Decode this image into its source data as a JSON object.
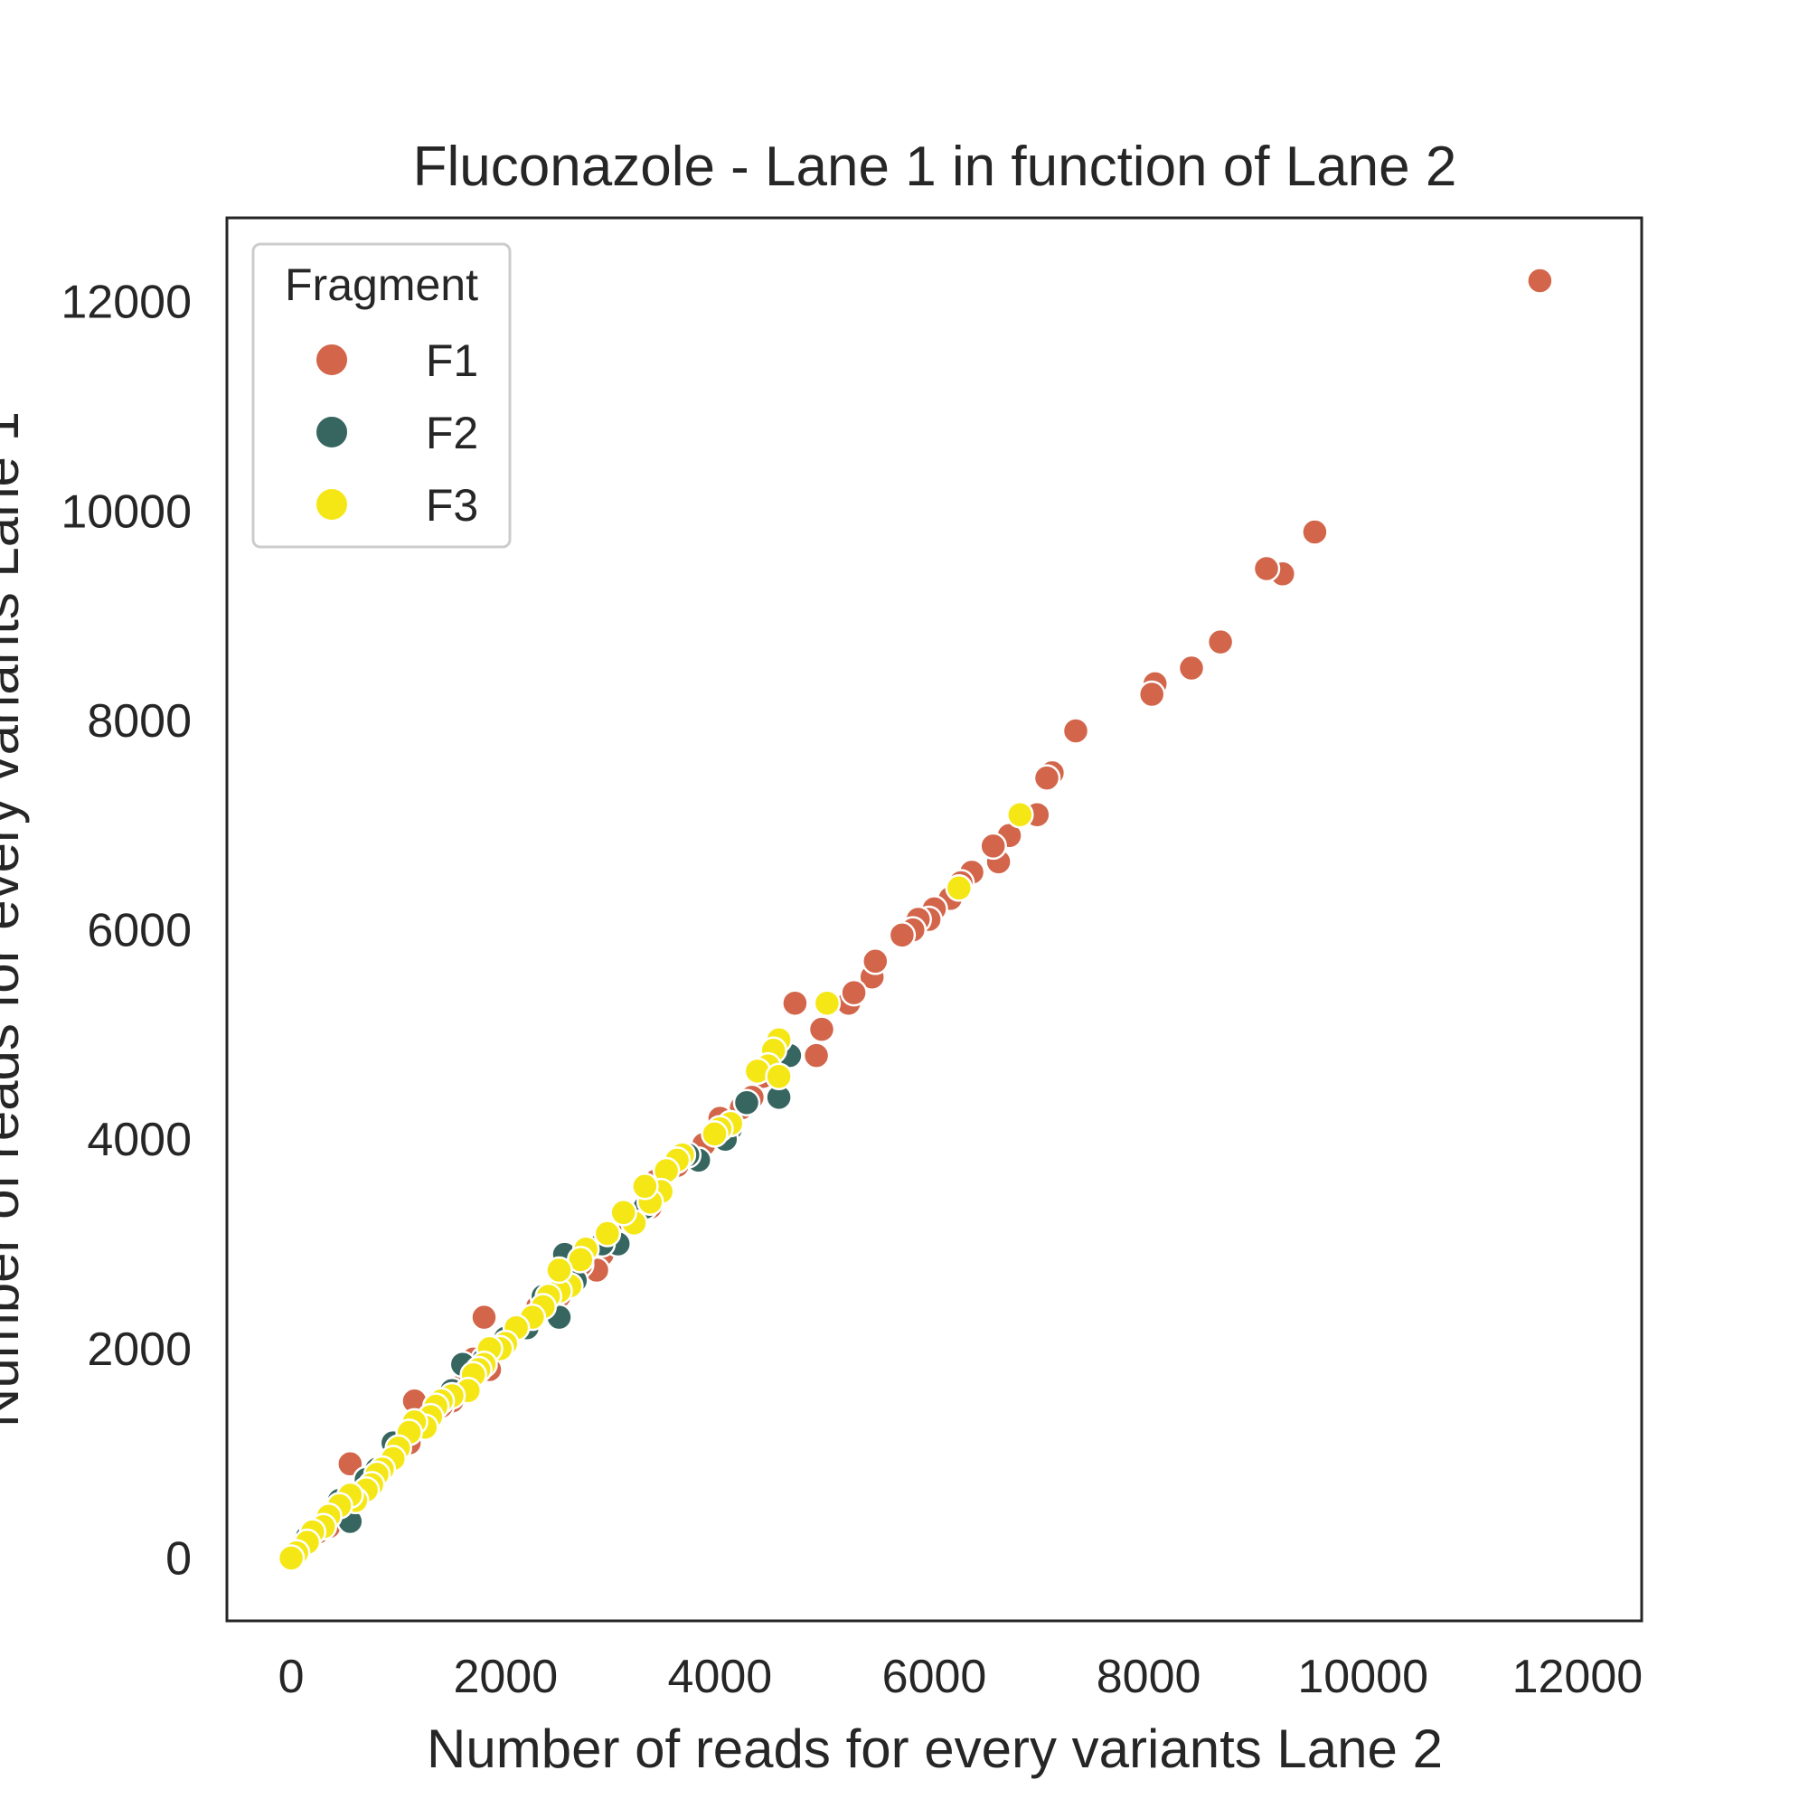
{
  "chart_data": {
    "type": "scatter",
    "title": "Fluconazole - Lane 1 in function of Lane 2",
    "xlabel": "Number of reads for every variants Lane 2",
    "ylabel": "Number of reads for every variants Lane 1",
    "xlim": [
      -600,
      12600
    ],
    "ylim": [
      -600,
      12800
    ],
    "xticks": [
      0,
      2000,
      4000,
      6000,
      8000,
      10000,
      12000
    ],
    "yticks": [
      0,
      2000,
      4000,
      6000,
      8000,
      10000,
      12000
    ],
    "grid": false,
    "legend": {
      "title": "Fragment",
      "placement": "top-left"
    },
    "series": [
      {
        "name": "F1",
        "color": "#d2654a",
        "points": [
          [
            11650,
            12200
          ],
          [
            9550,
            9800
          ],
          [
            9250,
            9400
          ],
          [
            9100,
            9450
          ],
          [
            8670,
            8750
          ],
          [
            8400,
            8500
          ],
          [
            8060,
            8350
          ],
          [
            8030,
            8250
          ],
          [
            7320,
            7900
          ],
          [
            7100,
            7500
          ],
          [
            7050,
            7450
          ],
          [
            6960,
            7100
          ],
          [
            6700,
            6900
          ],
          [
            6600,
            6650
          ],
          [
            6550,
            6800
          ],
          [
            6350,
            6550
          ],
          [
            6250,
            6450
          ],
          [
            6150,
            6300
          ],
          [
            6000,
            6200
          ],
          [
            5950,
            6100
          ],
          [
            5850,
            6100
          ],
          [
            5800,
            6000
          ],
          [
            5700,
            5950
          ],
          [
            5420,
            5550
          ],
          [
            5450,
            5700
          ],
          [
            5200,
            5300
          ],
          [
            5250,
            5400
          ],
          [
            4950,
            5050
          ],
          [
            4900,
            4800
          ],
          [
            4700,
            5300
          ],
          [
            4400,
            4600
          ],
          [
            4300,
            4400
          ],
          [
            4200,
            4300
          ],
          [
            4000,
            4200
          ],
          [
            3850,
            3950
          ],
          [
            3600,
            3750
          ],
          [
            3400,
            3600
          ],
          [
            3350,
            3350
          ],
          [
            3100,
            3250
          ],
          [
            2900,
            2900
          ],
          [
            2850,
            2750
          ],
          [
            2700,
            2800
          ],
          [
            2600,
            2650
          ],
          [
            2500,
            2500
          ],
          [
            2300,
            2400
          ],
          [
            2200,
            2250
          ],
          [
            1950,
            2000
          ],
          [
            1850,
            1800
          ],
          [
            1800,
            2300
          ],
          [
            1700,
            1900
          ],
          [
            1600,
            1650
          ],
          [
            1500,
            1500
          ],
          [
            1400,
            1450
          ],
          [
            1300,
            1400
          ],
          [
            1250,
            1250
          ],
          [
            1150,
            1500
          ],
          [
            1100,
            1100
          ],
          [
            950,
            1000
          ],
          [
            850,
            850
          ],
          [
            700,
            700
          ],
          [
            550,
            900
          ],
          [
            500,
            550
          ],
          [
            400,
            450
          ],
          [
            350,
            300
          ],
          [
            250,
            250
          ],
          [
            150,
            150
          ],
          [
            50,
            50
          ]
        ]
      },
      {
        "name": "F2",
        "color": "#376660",
        "points": [
          [
            4550,
            4400
          ],
          [
            4650,
            4800
          ],
          [
            4250,
            4350
          ],
          [
            4100,
            4100
          ],
          [
            4050,
            4000
          ],
          [
            3800,
            3800
          ],
          [
            3700,
            3850
          ],
          [
            3450,
            3500
          ],
          [
            3300,
            3350
          ],
          [
            3050,
            3000
          ],
          [
            2900,
            3000
          ],
          [
            2650,
            2650
          ],
          [
            2550,
            2900
          ],
          [
            2500,
            2300
          ],
          [
            2350,
            2500
          ],
          [
            2200,
            2200
          ],
          [
            2000,
            2100
          ],
          [
            1800,
            1900
          ],
          [
            1600,
            1850
          ],
          [
            1500,
            1600
          ],
          [
            1300,
            1350
          ],
          [
            1100,
            1200
          ],
          [
            950,
            1100
          ],
          [
            800,
            850
          ],
          [
            700,
            750
          ],
          [
            550,
            350
          ],
          [
            450,
            550
          ],
          [
            300,
            300
          ],
          [
            150,
            200
          ]
        ]
      },
      {
        "name": "F3",
        "color": "#f5e716",
        "points": [
          [
            6800,
            7100
          ],
          [
            6230,
            6400
          ],
          [
            5000,
            5300
          ],
          [
            4550,
            4950
          ],
          [
            4500,
            4850
          ],
          [
            4450,
            4700
          ],
          [
            4350,
            4650
          ],
          [
            4550,
            4600
          ],
          [
            4100,
            4150
          ],
          [
            4000,
            4100
          ],
          [
            3950,
            4050
          ],
          [
            3650,
            3850
          ],
          [
            3600,
            3800
          ],
          [
            3500,
            3700
          ],
          [
            3450,
            3500
          ],
          [
            3350,
            3400
          ],
          [
            3300,
            3550
          ],
          [
            3200,
            3200
          ],
          [
            3100,
            3300
          ],
          [
            2950,
            3100
          ],
          [
            2750,
            2950
          ],
          [
            2700,
            2850
          ],
          [
            2600,
            2600
          ],
          [
            2500,
            2550
          ],
          [
            2500,
            2750
          ],
          [
            2400,
            2500
          ],
          [
            2350,
            2400
          ],
          [
            2250,
            2300
          ],
          [
            2100,
            2200
          ],
          [
            2000,
            2050
          ],
          [
            1950,
            2000
          ],
          [
            1850,
            2000
          ],
          [
            1800,
            1850
          ],
          [
            1750,
            1800
          ],
          [
            1700,
            1750
          ],
          [
            1650,
            1600
          ],
          [
            1500,
            1550
          ],
          [
            1400,
            1500
          ],
          [
            1350,
            1450
          ],
          [
            1300,
            1350
          ],
          [
            1250,
            1250
          ],
          [
            1150,
            1300
          ],
          [
            1100,
            1200
          ],
          [
            1000,
            1050
          ],
          [
            950,
            950
          ],
          [
            850,
            850
          ],
          [
            800,
            800
          ],
          [
            750,
            700
          ],
          [
            700,
            650
          ],
          [
            600,
            550
          ],
          [
            550,
            600
          ],
          [
            450,
            500
          ],
          [
            350,
            400
          ],
          [
            300,
            300
          ],
          [
            200,
            250
          ],
          [
            150,
            150
          ],
          [
            50,
            50
          ],
          [
            0,
            0
          ]
        ]
      }
    ]
  }
}
